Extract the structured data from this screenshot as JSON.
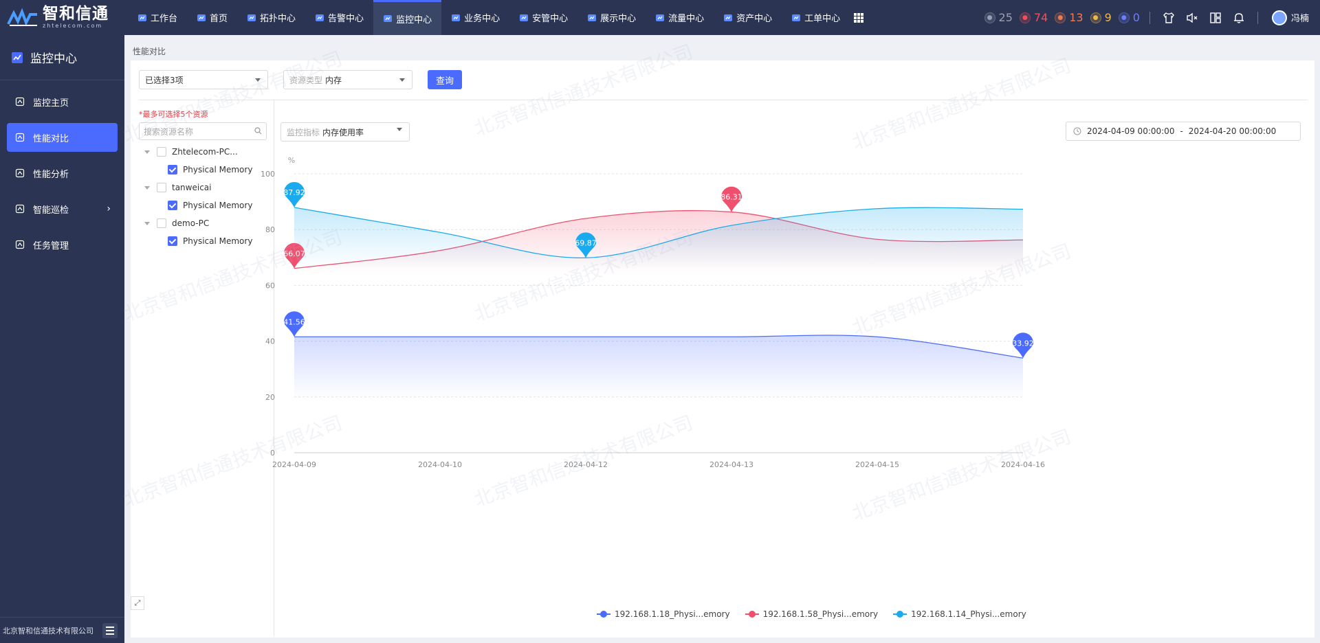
{
  "app": {
    "logo_main": "智和信通",
    "logo_sub": "zhtelecom.com"
  },
  "nav": [
    {
      "label": "工作台",
      "icon": "home-icon"
    },
    {
      "label": "首页",
      "icon": "house-icon"
    },
    {
      "label": "拓扑中心",
      "icon": "topology-icon"
    },
    {
      "label": "告警中心",
      "icon": "alarm-icon"
    },
    {
      "label": "监控中心",
      "icon": "monitor-icon",
      "active": true
    },
    {
      "label": "业务中心",
      "icon": "business-icon"
    },
    {
      "label": "安管中心",
      "icon": "shield-icon"
    },
    {
      "label": "展示中心",
      "icon": "display-icon"
    },
    {
      "label": "流量中心",
      "icon": "traffic-icon"
    },
    {
      "label": "资产中心",
      "icon": "asset-icon"
    },
    {
      "label": "工单中心",
      "icon": "ticket-icon"
    }
  ],
  "status": [
    {
      "value": "25",
      "color": "#9aa0b4",
      "icon": "close-icon"
    },
    {
      "value": "74",
      "color": "#f0505a",
      "icon": "critical-icon"
    },
    {
      "value": "13",
      "color": "#f07a4a",
      "icon": "major-icon"
    },
    {
      "value": "9",
      "color": "#f0b84a",
      "icon": "minor-icon"
    },
    {
      "value": "0",
      "color": "#6b7fff",
      "icon": "info-icon"
    }
  ],
  "user": {
    "name": "冯楠"
  },
  "sidebar": {
    "title": "监控中心",
    "items": [
      {
        "label": "监控主页",
        "icon": "home-icon"
      },
      {
        "label": "性能对比",
        "icon": "dashboard-icon",
        "active": true
      },
      {
        "label": "性能分析",
        "icon": "dashboard-icon"
      },
      {
        "label": "智能巡检",
        "icon": "inspect-icon",
        "has_children": true
      },
      {
        "label": "任务管理",
        "icon": "task-icon"
      }
    ],
    "footer": "北京智和信通技术有限公司"
  },
  "breadcrumb": "性能对比",
  "filters": {
    "resource_select": "已选择3项",
    "resource_type_label": "资源类型",
    "resource_type_value": "内存",
    "query_button": "查询"
  },
  "tree": {
    "warning": "*最多可选择5个资源",
    "search_placeholder": "搜索资源名称",
    "nodes": [
      {
        "label": "Zhtelecom-PC...",
        "child": "Physical Memory"
      },
      {
        "label": "tanweicai",
        "child": "Physical Memory"
      },
      {
        "label": "demo-PC",
        "child": "Physical Memory"
      }
    ]
  },
  "metric": {
    "label": "监控指标",
    "value": "内存使用率"
  },
  "daterange": {
    "start": "2024-04-09 00:00:00",
    "sep": "-",
    "end": "2024-04-20 00:00:00"
  },
  "chart_data": {
    "type": "line",
    "ylabel": "%",
    "ylim": [
      0,
      100
    ],
    "yticks": [
      "0",
      "20",
      "40",
      "60",
      "80",
      "100"
    ],
    "categories": [
      "2024-04-09",
      "2024-04-10",
      "2024-04-12",
      "2024-04-13",
      "2024-04-15",
      "2024-04-16"
    ],
    "series": [
      {
        "name": "192.168.1.18_Physi...emory",
        "color": "#4b6bff",
        "values": [
          41.56,
          41.56,
          41.56,
          41.56,
          41.56,
          33.92
        ],
        "markers": [
          {
            "index": 0,
            "label": "41.56"
          },
          {
            "index": 5,
            "label": "33.92"
          }
        ]
      },
      {
        "name": "192.168.1.58_Physi...emory",
        "color": "#f0506e",
        "values": [
          66.07,
          72.5,
          84.0,
          86.31,
          76.5,
          76.3
        ],
        "markers": [
          {
            "index": 0,
            "label": "66.07"
          },
          {
            "index": 3,
            "label": "86.31"
          }
        ]
      },
      {
        "name": "192.168.1.14_Physi...emory",
        "color": "#1aaaee",
        "values": [
          87.92,
          79.0,
          69.87,
          81.5,
          87.5,
          87.3
        ],
        "markers": [
          {
            "index": 0,
            "label": "87.92"
          },
          {
            "index": 2,
            "label": "69.87"
          }
        ]
      }
    ],
    "grid": true,
    "legend_position": "bottom-center"
  }
}
